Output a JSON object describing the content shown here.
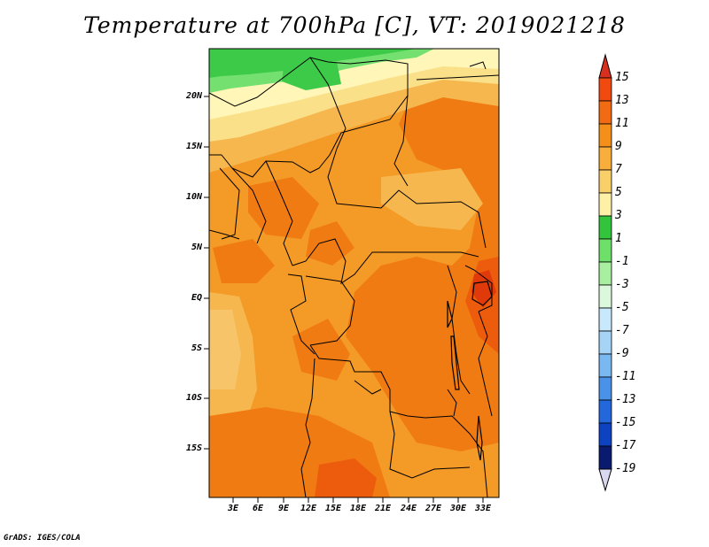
{
  "title": "Temperature at 700hPa [C], VT: 2019021218",
  "credit": "GrADS: IGES/COLA",
  "lat_labels": [
    "20N",
    "15N",
    "10N",
    "5N",
    "EQ",
    "5S",
    "10S",
    "15S"
  ],
  "lon_labels": [
    "3E",
    "6E",
    "9E",
    "12E",
    "15E",
    "18E",
    "21E",
    "24E",
    "27E",
    "30E",
    "33E"
  ],
  "colorbar": {
    "labels": [
      "15",
      "13",
      "11",
      "9",
      "7",
      "5",
      "3",
      "1",
      "-1",
      "-3",
      "-5",
      "-7",
      "-9",
      "-11",
      "-13",
      "-15",
      "-17",
      "-19"
    ],
    "colors": [
      "#d7301f",
      "#f04a10",
      "#f26b12",
      "#f4901a",
      "#f7ae3a",
      "#f9cf6a",
      "#fff0a8",
      "#32c43a",
      "#6ee06a",
      "#a8f0a0",
      "#dcf8dc",
      "#c8e8fb",
      "#a6d4f7",
      "#7ab8f2",
      "#4a92e8",
      "#2268dc",
      "#0d42c0",
      "#0a1a6e",
      "#d8d8f0"
    ]
  },
  "field_colors": {
    "green_dark": "#3cca48",
    "green_light": "#74e070",
    "pale_yellow": "#fff6b8",
    "light_yellow": "#fbe08a",
    "tan": "#f6b84e",
    "orange": "#f49a26",
    "dark_orange": "#f07b12",
    "deep_orange": "#ec5c0c",
    "red_orange": "#e03a0a"
  }
}
